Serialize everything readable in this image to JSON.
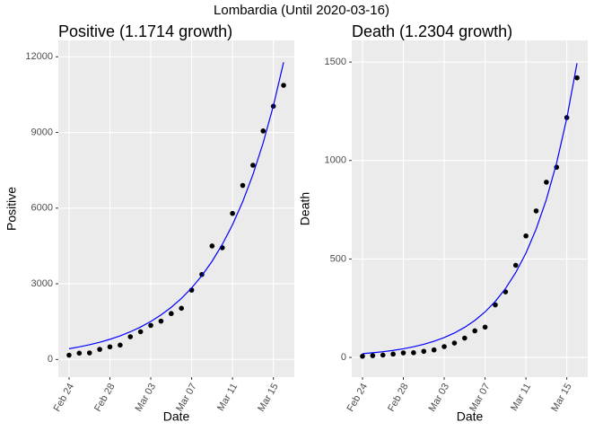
{
  "title": "Lombardia (Until 2020-03-16)",
  "chart_data": [
    {
      "type": "scatter",
      "title": "Positive (1.1714 growth)",
      "xlabel": "Date",
      "ylabel": "Positive",
      "categories": [
        "Feb 24",
        "Feb 25",
        "Feb 26",
        "Feb 27",
        "Feb 28",
        "Feb 29",
        "Mar 01",
        "Mar 02",
        "Mar 03",
        "Mar 04",
        "Mar 05",
        "Mar 06",
        "Mar 07",
        "Mar 08",
        "Mar 09",
        "Mar 10",
        "Mar 11",
        "Mar 12",
        "Mar 13",
        "Mar 14",
        "Mar 15",
        "Mar 16"
      ],
      "xticks": [
        "Feb 24",
        "Feb 28",
        "Mar 03",
        "Mar 07",
        "Mar 11",
        "Mar 15"
      ],
      "series": [
        {
          "kind": "points",
          "color": "#000000",
          "values": [
            170,
            250,
            260,
            400,
            500,
            570,
            900,
            1100,
            1350,
            1520,
            1820,
            2030,
            2750,
            3370,
            4500,
            4430,
            5790,
            6900,
            7700,
            9060,
            10040,
            10870
          ]
        },
        {
          "kind": "line",
          "color": "#0000ff",
          "values": [
            425,
            498,
            583,
            683,
            800,
            937,
            1098,
            1286,
            1507,
            1765,
            2068,
            2422,
            2837,
            3324,
            3893,
            4561,
            5342,
            6258,
            7331,
            8587,
            10059,
            11783
          ]
        }
      ],
      "ylim": [
        -700,
        12650
      ],
      "yticks": [
        0,
        3000,
        6000,
        9000,
        12000
      ],
      "grid": true
    },
    {
      "type": "scatter",
      "title": "Death (1.2304 growth)",
      "xlabel": "Date",
      "ylabel": "Death",
      "categories": [
        "Feb 24",
        "Feb 25",
        "Feb 26",
        "Feb 27",
        "Feb 28",
        "Feb 29",
        "Mar 01",
        "Mar 02",
        "Mar 03",
        "Mar 04",
        "Mar 05",
        "Mar 06",
        "Mar 07",
        "Mar 08",
        "Mar 09",
        "Mar 10",
        "Mar 11",
        "Mar 12",
        "Mar 13",
        "Mar 14",
        "Mar 15",
        "Mar 16"
      ],
      "xticks": [
        "Feb 24",
        "Feb 28",
        "Mar 03",
        "Mar 07",
        "Mar 11",
        "Mar 15"
      ],
      "series": [
        {
          "kind": "points",
          "color": "#000000",
          "values": [
            6,
            9,
            12,
            17,
            23,
            24,
            31,
            38,
            55,
            73,
            98,
            135,
            154,
            267,
            333,
            468,
            617,
            744,
            890,
            966,
            1218,
            1420
          ]
        },
        {
          "kind": "line",
          "color": "#0000ff",
          "values": [
            19.2,
            23.6,
            29.1,
            35.8,
            44.0,
            54.2,
            66.6,
            82.0,
            100.9,
            124.1,
            152.7,
            187.9,
            231.2,
            284.5,
            350.0,
            430.7,
            529.9,
            652.0,
            802.2,
            987.0,
            1214.5,
            1494.3
          ]
        }
      ],
      "ylim": [
        -100,
        1610
      ],
      "yticks": [
        0,
        500,
        1000,
        1500
      ],
      "grid": true
    }
  ]
}
